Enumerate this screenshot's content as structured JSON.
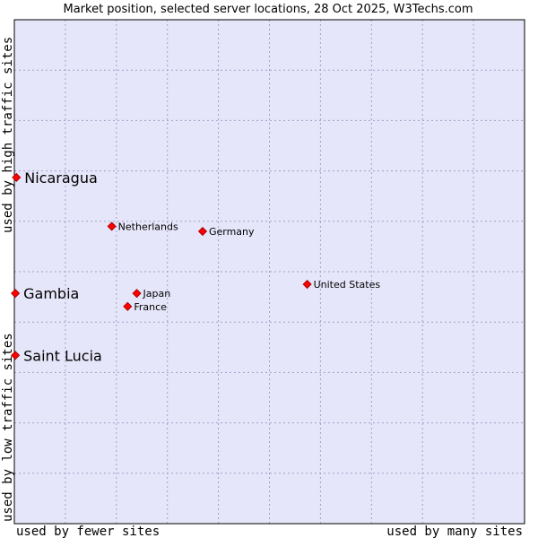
{
  "chart_data": {
    "type": "scatter",
    "title": "Market position, selected server locations, 28 Oct 2025, W3Techs.com",
    "xlabel_left": "used by fewer sites",
    "xlabel_right": "used by many sites",
    "ylabel_bottom": "used by low traffic sites",
    "ylabel_top": "used by high traffic sites",
    "xlim": [
      0,
      100
    ],
    "ylim": [
      0,
      100
    ],
    "grid": true,
    "colors": {
      "plot_bg": "#e6e6fa",
      "grid": "#a0a0c8",
      "border": "#000000",
      "marker": "#ff0000",
      "marker_edge": "#990000"
    },
    "points": [
      {
        "label": "Nicaragua",
        "x": 0.4,
        "y": 68.7,
        "emphasis": true
      },
      {
        "label": "Netherlands",
        "x": 19.1,
        "y": 59.0,
        "emphasis": false
      },
      {
        "label": "Germany",
        "x": 36.9,
        "y": 58.0,
        "emphasis": false
      },
      {
        "label": "United States",
        "x": 57.4,
        "y": 47.5,
        "emphasis": false
      },
      {
        "label": "Gambia",
        "x": 0.2,
        "y": 45.7,
        "emphasis": true
      },
      {
        "label": "Japan",
        "x": 24.0,
        "y": 45.7,
        "emphasis": false
      },
      {
        "label": "France",
        "x": 22.2,
        "y": 43.1,
        "emphasis": false
      },
      {
        "label": "Saint Lucia",
        "x": 0.2,
        "y": 33.4,
        "emphasis": true
      }
    ]
  }
}
